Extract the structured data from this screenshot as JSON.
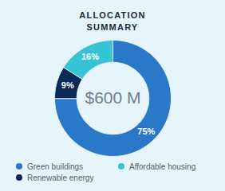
{
  "chart_data": {
    "type": "pie",
    "title": "ALLOCATION SUMMARY",
    "annotation": "$600 M",
    "categories": [
      "Green buildings",
      "Renewable energy",
      "Affordable housing"
    ],
    "values": [
      75,
      9,
      16
    ],
    "value_labels": [
      "75%",
      "9%",
      "16%"
    ],
    "colors": [
      "#2a79c9",
      "#0c2a57",
      "#35c3d5"
    ],
    "data_labels": true,
    "legend": "bottom",
    "tick_labels": false
  }
}
